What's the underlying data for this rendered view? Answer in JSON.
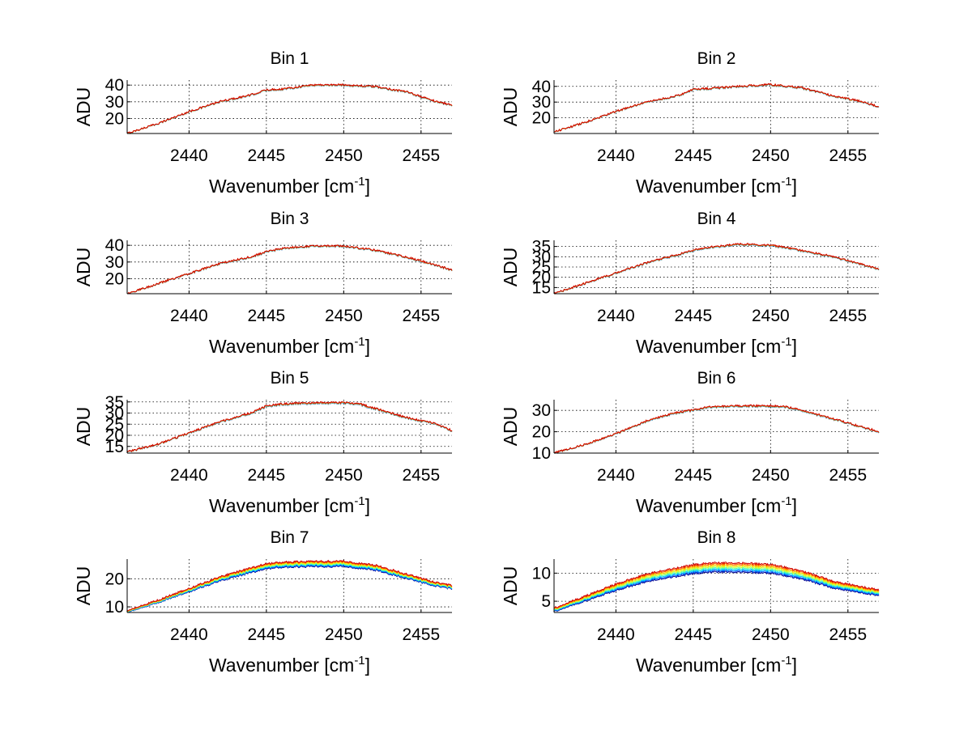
{
  "figure": {
    "background": "#ffffff",
    "series_colors": [
      "#00008f",
      "#0060ff",
      "#00cfff",
      "#60ff9f",
      "#cfff30",
      "#ffcf00",
      "#ff6000",
      "#cf0000"
    ]
  },
  "chart_data": [
    {
      "type": "line",
      "title": "Bin 1",
      "xlabel": "Wavenumber [cm",
      "xlabel_sup": "-1",
      "xlabel_end": "]",
      "ylabel": "ADU",
      "xlim": [
        2436,
        2457
      ],
      "ylim": [
        11,
        43
      ],
      "xticks": [
        2440,
        2445,
        2450,
        2455
      ],
      "yticks": [
        20,
        30,
        40
      ],
      "grid": true,
      "series_count": 8,
      "series_spread": 0.3,
      "x": [
        2436,
        2438,
        2440,
        2442,
        2444,
        2445,
        2446,
        2448,
        2450,
        2452,
        2454,
        2456,
        2457
      ],
      "y": [
        11,
        17,
        24,
        30,
        34,
        37,
        37.5,
        40,
        40,
        39,
        36,
        30,
        28
      ]
    },
    {
      "type": "line",
      "title": "Bin 2",
      "xlabel": "Wavenumber [cm",
      "xlabel_sup": "-1",
      "xlabel_end": "]",
      "ylabel": "ADU",
      "xlim": [
        2436,
        2457
      ],
      "ylim": [
        10,
        44
      ],
      "xticks": [
        2440,
        2445,
        2450,
        2455
      ],
      "yticks": [
        20,
        30,
        40
      ],
      "grid": true,
      "series_count": 8,
      "series_spread": 0.3,
      "x": [
        2436,
        2438,
        2440,
        2442,
        2444,
        2445,
        2446,
        2448,
        2450,
        2452,
        2454,
        2456,
        2457
      ],
      "y": [
        11,
        17,
        24,
        30,
        34,
        38,
        38.5,
        40,
        41,
        39,
        34,
        30,
        27
      ]
    },
    {
      "type": "line",
      "title": "Bin 3",
      "xlabel": "Wavenumber [cm",
      "xlabel_sup": "-1",
      "xlabel_end": "]",
      "ylabel": "ADU",
      "xlim": [
        2436,
        2457
      ],
      "ylim": [
        11,
        43
      ],
      "xticks": [
        2440,
        2445,
        2450,
        2455
      ],
      "yticks": [
        20,
        30,
        40
      ],
      "grid": true,
      "series_count": 8,
      "series_spread": 0.3,
      "x": [
        2436,
        2438,
        2440,
        2442,
        2444,
        2445,
        2446,
        2448,
        2450,
        2452,
        2454,
        2456,
        2457
      ],
      "y": [
        11,
        17,
        23,
        29,
        33,
        36,
        38,
        39.5,
        39.5,
        37,
        33,
        28,
        25
      ]
    },
    {
      "type": "line",
      "title": "Bin 4",
      "xlabel": "Wavenumber [cm",
      "xlabel_sup": "-1",
      "xlabel_end": "]",
      "ylabel": "ADU",
      "xlim": [
        2436,
        2457
      ],
      "ylim": [
        12,
        38
      ],
      "xticks": [
        2440,
        2445,
        2450,
        2455
      ],
      "yticks": [
        15,
        20,
        25,
        30,
        35
      ],
      "grid": true,
      "series_count": 8,
      "series_spread": 0.3,
      "x": [
        2436,
        2438,
        2440,
        2442,
        2444,
        2445,
        2446,
        2448,
        2450,
        2452,
        2454,
        2456,
        2457
      ],
      "y": [
        12,
        17,
        22,
        27,
        31,
        33,
        34.5,
        36,
        35.5,
        33,
        30,
        26,
        24
      ]
    },
    {
      "type": "line",
      "title": "Bin 5",
      "xlabel": "Wavenumber [cm",
      "xlabel_sup": "-1",
      "xlabel_end": "]",
      "ylabel": "ADU",
      "xlim": [
        2436,
        2457
      ],
      "ylim": [
        12,
        36
      ],
      "xticks": [
        2440,
        2445,
        2450,
        2455
      ],
      "yticks": [
        15,
        20,
        25,
        30,
        35
      ],
      "grid": true,
      "series_count": 8,
      "series_spread": 0.3,
      "x": [
        2436,
        2438,
        2440,
        2442,
        2444,
        2445,
        2446,
        2448,
        2450,
        2451,
        2452,
        2454,
        2456,
        2457
      ],
      "y": [
        12.5,
        16,
        21,
        26,
        30,
        33,
        34,
        34.5,
        34.5,
        34,
        32,
        28,
        25,
        22
      ]
    },
    {
      "type": "line",
      "title": "Bin 6",
      "xlabel": "Wavenumber [cm",
      "xlabel_sup": "-1",
      "xlabel_end": "]",
      "ylabel": "ADU",
      "xlim": [
        2436,
        2457
      ],
      "ylim": [
        10,
        35
      ],
      "xticks": [
        2440,
        2445,
        2450,
        2455
      ],
      "yticks": [
        10,
        20,
        30
      ],
      "grid": true,
      "series_count": 8,
      "series_spread": 0.3,
      "x": [
        2436,
        2438,
        2440,
        2442,
        2444,
        2445,
        2446,
        2448,
        2450,
        2451,
        2452,
        2454,
        2456,
        2457
      ],
      "y": [
        10,
        14,
        19,
        25,
        29,
        30,
        31.5,
        32,
        32,
        31.5,
        30,
        26,
        22,
        20
      ]
    },
    {
      "type": "line",
      "title": "Bin 7",
      "xlabel": "Wavenumber [cm",
      "xlabel_sup": "-1",
      "xlabel_end": "]",
      "ylabel": "ADU",
      "xlim": [
        2436,
        2457
      ],
      "ylim": [
        8,
        27
      ],
      "xticks": [
        2440,
        2445,
        2450,
        2455
      ],
      "yticks": [
        10,
        20
      ],
      "grid": true,
      "series_count": 8,
      "series_spread": 1.4,
      "x": [
        2436,
        2438,
        2440,
        2442,
        2444,
        2445,
        2446,
        2448,
        2450,
        2452,
        2454,
        2456,
        2457
      ],
      "y": [
        8.5,
        12,
        16,
        20,
        23,
        24.5,
        25,
        25.3,
        25.3,
        24,
        21,
        18,
        17
      ]
    },
    {
      "type": "line",
      "title": "Bin 8",
      "xlabel": "Wavenumber [cm",
      "xlabel_sup": "-1",
      "xlabel_end": "]",
      "ylabel": "ADU",
      "xlim": [
        2436,
        2457
      ],
      "ylim": [
        3,
        12.5
      ],
      "xticks": [
        2440,
        2445,
        2450,
        2455
      ],
      "yticks": [
        5,
        10
      ],
      "grid": true,
      "series_count": 8,
      "series_spread": 1.3,
      "x": [
        2436,
        2438,
        2440,
        2442,
        2444,
        2445,
        2446,
        2448,
        2450,
        2452,
        2454,
        2456,
        2457
      ],
      "y": [
        3.5,
        5.5,
        7.5,
        9.2,
        10.2,
        10.7,
        11,
        11,
        10.8,
        9.7,
        8,
        7,
        6.5
      ]
    }
  ]
}
